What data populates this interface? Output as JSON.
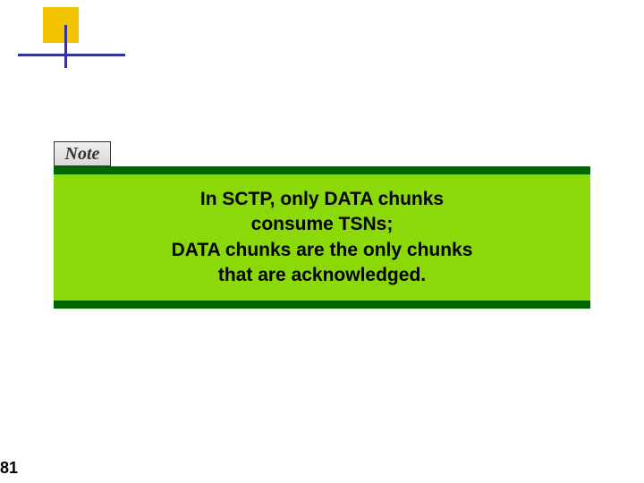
{
  "decoration": {
    "square_color": "#f2c500",
    "line_color": "#333399"
  },
  "note": {
    "label": "Note",
    "label_color": "#333333",
    "bg_gradient_top": "#f0f0f0",
    "bg_gradient_bottom": "#d8d8d8",
    "border_color": "#333333"
  },
  "content": {
    "line1": "In SCTP, only DATA chunks",
    "line2": "consume TSNs;",
    "line3": "DATA chunks are the only chunks",
    "line4": "that are acknowledged.",
    "bg_color": "#8cd909",
    "stripe_color": "#006600",
    "text_color": "#000000",
    "font_size": 21
  },
  "page": {
    "number": "81"
  }
}
